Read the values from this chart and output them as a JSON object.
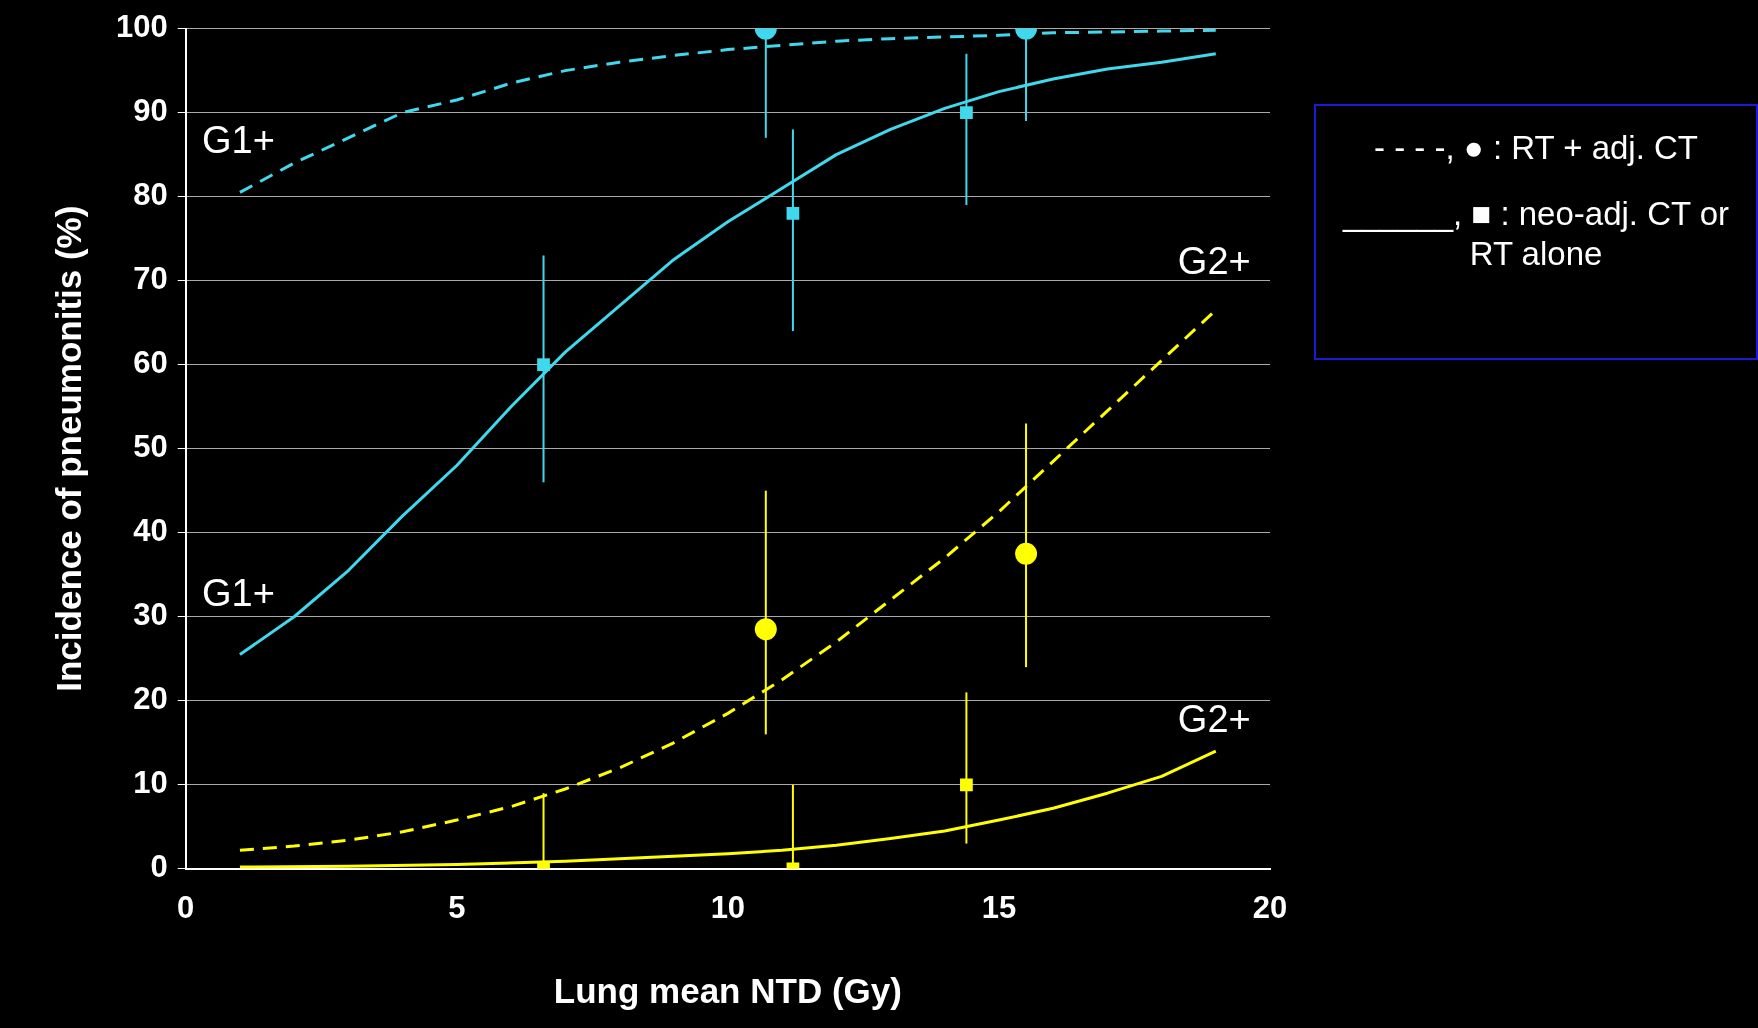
{
  "chart_data": {
    "type": "line",
    "xlabel": "Lung mean NTD (Gy)",
    "ylabel": "Incidence of pneumonitis (%)",
    "xlim": [
      0,
      20
    ],
    "xticks": [
      0,
      5,
      10,
      15,
      20
    ],
    "ylim": [
      0,
      100
    ],
    "yticks": [
      0,
      10,
      20,
      30,
      40,
      50,
      60,
      70,
      80,
      90,
      100
    ],
    "grid": "y",
    "series": [
      {
        "color": "#40d8ec",
        "line_style": "dashed",
        "marker": "none",
        "x": [
          1,
          2,
          3,
          4,
          5,
          6,
          7,
          8,
          9,
          10,
          11,
          12,
          13,
          14,
          15,
          16,
          17,
          18,
          19
        ],
        "values": [
          80.5,
          84,
          87,
          90,
          91.5,
          93.5,
          95,
          96,
          96.8,
          97.5,
          98,
          98.5,
          98.8,
          99,
          99.2,
          99.5,
          99.6,
          99.7,
          99.8
        ]
      },
      {
        "color": "#40d8ec",
        "line_style": "solid",
        "marker": "none",
        "x": [
          1,
          2,
          3,
          4,
          5,
          6,
          7,
          8,
          9,
          10,
          11,
          12,
          13,
          14,
          15,
          16,
          17,
          18,
          19
        ],
        "values": [
          25.5,
          30,
          35.5,
          42,
          48,
          55,
          61.5,
          67,
          72.5,
          77,
          81,
          85,
          88,
          90.5,
          92.5,
          94,
          95.2,
          96,
          97
        ]
      },
      {
        "color": "#ffff00",
        "line_style": "dashed",
        "marker": "none",
        "x": [
          1,
          2,
          3,
          4,
          5,
          6,
          7,
          8,
          9,
          10,
          11,
          12,
          13,
          14,
          15,
          16,
          17,
          18,
          19
        ],
        "values": [
          2.2,
          2.7,
          3.4,
          4.4,
          5.8,
          7.4,
          9.5,
          12,
          15,
          18.5,
          22.5,
          27,
          32,
          37,
          42.5,
          48.5,
          54.5,
          60.5,
          66.5
        ]
      },
      {
        "color": "#ffff00",
        "line_style": "solid",
        "marker": "none",
        "x": [
          1,
          3,
          5,
          7,
          9,
          10,
          11,
          12,
          13,
          14,
          15,
          16,
          17,
          18,
          19
        ],
        "values": [
          0.2,
          0.3,
          0.5,
          0.9,
          1.5,
          1.8,
          2.2,
          2.8,
          3.6,
          4.5,
          5.8,
          7.2,
          9,
          11,
          14
        ]
      },
      {
        "type": "scatter",
        "color": "#40d8ec",
        "marker": "circle",
        "x": [
          10.7,
          15.5
        ],
        "values": [
          100,
          100
        ],
        "errors": [
          [
            87,
            100
          ],
          [
            89,
            100
          ]
        ]
      },
      {
        "type": "scatter",
        "color": "#40d8ec",
        "marker": "square",
        "x": [
          6.6,
          11.2,
          14.4
        ],
        "values": [
          60,
          78,
          90
        ],
        "errors": [
          [
            46,
            73
          ],
          [
            64,
            88
          ],
          [
            79,
            97
          ]
        ]
      },
      {
        "type": "scatter",
        "color": "#ffff00",
        "marker": "circle",
        "x": [
          10.7,
          15.5
        ],
        "values": [
          28.5,
          37.5
        ],
        "errors": [
          [
            16,
            45
          ],
          [
            24,
            53
          ]
        ]
      },
      {
        "type": "scatter",
        "color": "#ffff00",
        "marker": "square",
        "x": [
          6.6,
          11.2,
          14.4
        ],
        "values": [
          0,
          0,
          10
        ],
        "errors": [
          [
            0,
            9
          ],
          [
            0,
            10
          ],
          [
            3,
            21
          ]
        ]
      }
    ],
    "annotations": [
      "G1+",
      "G1+",
      "G2+",
      "G2+",
      "- - - -, ● :  RT + adj. CT",
      "______, ■ :  neo-adj. CT or RT alone"
    ]
  }
}
